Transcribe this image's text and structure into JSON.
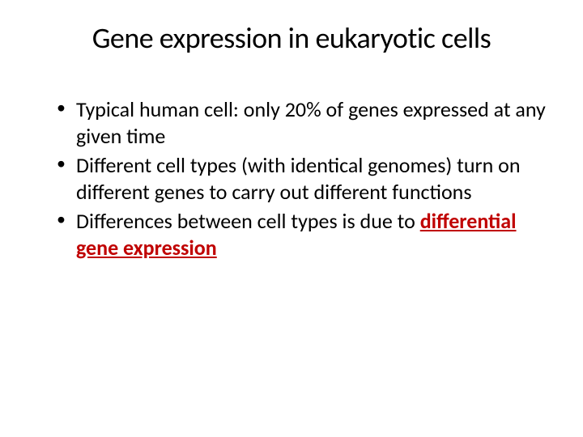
{
  "slide": {
    "title": "Gene expression in eukaryotic cells",
    "title_fontsize": 36,
    "title_color": "#000000",
    "background_color": "#ffffff",
    "body_fontsize": 26,
    "body_color": "#000000",
    "highlight_color": "#c00000",
    "bullets": [
      {
        "text": "Typical human cell: only 20% of genes expressed at any given time"
      },
      {
        "text": "Different cell types (with identical genomes) turn on different genes to carry out different functions"
      },
      {
        "text_prefix": "Differences between cell types is due to ",
        "highlight_text": "differential gene expression"
      }
    ]
  }
}
